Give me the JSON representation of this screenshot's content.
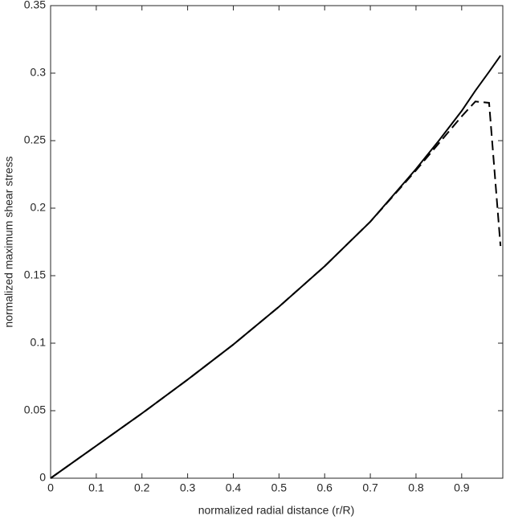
{
  "chart_data": {
    "type": "line",
    "x_label": "normalized radial distance (r/R)",
    "y_label": "normalized maximum shear stress",
    "x": [
      0,
      0.1,
      0.2,
      0.3,
      0.4,
      0.5,
      0.6,
      0.7,
      0.8,
      0.85,
      0.9,
      0.93,
      0.96,
      0.985
    ],
    "series": [
      {
        "color": "#000000",
        "dash": false,
        "values": [
          0,
          0.024,
          0.048,
          0.073,
          0.099,
          0.127,
          0.157,
          0.19,
          0.229,
          0.25,
          0.272,
          0.287,
          0.301,
          0.313
        ]
      },
      {
        "color": "#000000",
        "dash": true,
        "values": [
          0,
          0.024,
          0.048,
          0.073,
          0.099,
          0.127,
          0.157,
          0.19,
          0.228,
          0.248,
          0.268,
          0.279,
          0.278,
          0.172
        ]
      }
    ],
    "xlim": [
      0,
      0.99
    ],
    "xticks": [
      0,
      0.1,
      0.2,
      0.3,
      0.4,
      0.5,
      0.6,
      0.7,
      0.8,
      0.9
    ],
    "ylim": [
      0,
      0.35
    ],
    "yticks": [
      0,
      0.05,
      0.1,
      0.15,
      0.2,
      0.25,
      0.3,
      0.35
    ],
    "grid": false
  }
}
